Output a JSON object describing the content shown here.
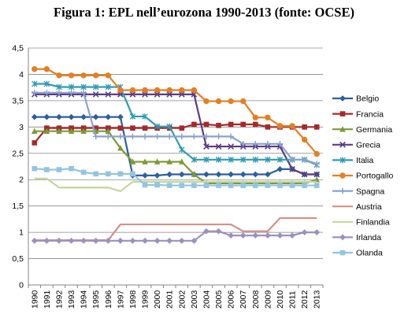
{
  "title": "Figura 1: EPL nell’eurozona 1990-2013 (fonte: OCSE)",
  "chart_data": {
    "type": "line",
    "title": "Figura 1: EPL nell’eurozona 1990-2013 (fonte: OCSE)",
    "xlabel": "",
    "ylabel": "",
    "ylim": [
      0,
      4.5
    ],
    "yticks": [
      "0",
      "0,5",
      "1",
      "1,5",
      "2",
      "2,5",
      "3",
      "3,5",
      "4",
      "4,5"
    ],
    "categories": [
      "1990",
      "1991",
      "1992",
      "1993",
      "1994",
      "1995",
      "1996",
      "1997",
      "1998",
      "1999",
      "2000",
      "2001",
      "2002",
      "2003",
      "2004",
      "2005",
      "2006",
      "2007",
      "2008",
      "2009",
      "2010",
      "2011",
      "2012",
      "2013"
    ],
    "grid": true,
    "legend_position": "right",
    "series": [
      {
        "name": "Belgio",
        "color": "#2e5f9e",
        "marker": "diamond",
        "values": [
          3.19,
          3.19,
          3.19,
          3.19,
          3.19,
          3.19,
          3.19,
          3.19,
          2.08,
          2.08,
          2.08,
          2.1,
          2.1,
          2.1,
          2.1,
          2.1,
          2.1,
          2.1,
          2.1,
          2.1,
          2.2,
          2.2,
          2.1,
          2.1
        ]
      },
      {
        "name": "Francia",
        "color": "#a32b2b",
        "marker": "square",
        "values": [
          2.7,
          2.98,
          2.98,
          2.98,
          2.98,
          2.98,
          2.98,
          2.98,
          2.98,
          2.98,
          2.98,
          2.98,
          2.98,
          3.05,
          3.05,
          3.03,
          3.05,
          3.05,
          3.05,
          3.0,
          3.0,
          3.0,
          3.0,
          3.0
        ]
      },
      {
        "name": "Germania",
        "color": "#7d9a35",
        "marker": "triangle",
        "values": [
          2.92,
          2.92,
          2.92,
          2.92,
          2.92,
          2.92,
          2.92,
          2.6,
          2.34,
          2.34,
          2.34,
          2.34,
          2.34,
          2.1,
          1.93,
          1.93,
          1.93,
          1.93,
          1.93,
          1.93,
          1.93,
          1.93,
          1.93,
          2.0
        ]
      },
      {
        "name": "Grecia",
        "color": "#5b3c84",
        "marker": "x",
        "values": [
          3.62,
          3.62,
          3.62,
          3.62,
          3.62,
          3.62,
          3.62,
          3.62,
          3.62,
          3.62,
          3.62,
          3.62,
          3.62,
          3.62,
          2.63,
          2.63,
          2.63,
          2.63,
          2.63,
          2.63,
          2.63,
          2.2,
          2.1,
          2.1
        ]
      },
      {
        "name": "Italia",
        "color": "#2f9bb0",
        "marker": "star",
        "values": [
          3.82,
          3.82,
          3.76,
          3.76,
          3.76,
          3.76,
          3.76,
          3.76,
          3.2,
          3.2,
          3.01,
          3.01,
          2.57,
          2.38,
          2.38,
          2.38,
          2.38,
          2.38,
          2.38,
          2.38,
          2.38,
          2.38,
          2.38,
          2.28
        ]
      },
      {
        "name": "Portogallo",
        "color": "#e37f25",
        "marker": "circle",
        "values": [
          4.1,
          4.1,
          3.98,
          3.98,
          3.98,
          3.98,
          3.98,
          3.7,
          3.7,
          3.7,
          3.7,
          3.7,
          3.7,
          3.7,
          3.49,
          3.49,
          3.49,
          3.49,
          3.18,
          3.18,
          3.02,
          3.02,
          2.76,
          2.49
        ]
      },
      {
        "name": "Spagna",
        "color": "#8aa3cc",
        "marker": "plus",
        "values": [
          3.65,
          3.65,
          3.65,
          3.65,
          3.65,
          2.82,
          2.82,
          2.82,
          2.82,
          2.82,
          2.82,
          2.82,
          2.82,
          2.82,
          2.82,
          2.82,
          2.82,
          2.68,
          2.68,
          2.68,
          2.68,
          2.38,
          2.38,
          2.3
        ]
      },
      {
        "name": "Austria",
        "color": "#d2908b",
        "marker": "none",
        "values": [
          0.85,
          0.85,
          0.85,
          0.85,
          0.85,
          0.85,
          0.85,
          1.15,
          1.15,
          1.15,
          1.15,
          1.15,
          1.15,
          1.15,
          1.15,
          1.15,
          1.15,
          1.02,
          1.02,
          1.02,
          1.27,
          1.27,
          1.27,
          1.27
        ]
      },
      {
        "name": "Finlandia",
        "color": "#c4d69c",
        "marker": "none",
        "values": [
          2.02,
          2.02,
          1.85,
          1.85,
          1.85,
          1.85,
          1.85,
          1.78,
          1.96,
          1.96,
          1.96,
          1.96,
          1.96,
          1.96,
          1.96,
          1.96,
          1.96,
          1.96,
          1.96,
          1.96,
          1.96,
          1.96,
          1.96,
          1.96
        ]
      },
      {
        "name": "Irlanda",
        "color": "#9c90c0",
        "marker": "diamond",
        "values": [
          0.84,
          0.84,
          0.84,
          0.84,
          0.84,
          0.84,
          0.84,
          0.84,
          0.84,
          0.84,
          0.84,
          0.84,
          0.84,
          0.84,
          1.02,
          1.02,
          0.94,
          0.94,
          0.94,
          0.94,
          0.94,
          0.94,
          1.0,
          1.0
        ]
      },
      {
        "name": "Olanda",
        "color": "#93c4e0",
        "marker": "square",
        "values": [
          2.21,
          2.19,
          2.19,
          2.21,
          2.14,
          2.11,
          2.11,
          2.11,
          2.11,
          1.9,
          1.9,
          1.89,
          1.89,
          1.89,
          1.89,
          1.89,
          1.89,
          1.89,
          1.89,
          1.89,
          1.89,
          1.89,
          1.89,
          1.89
        ]
      }
    ]
  }
}
